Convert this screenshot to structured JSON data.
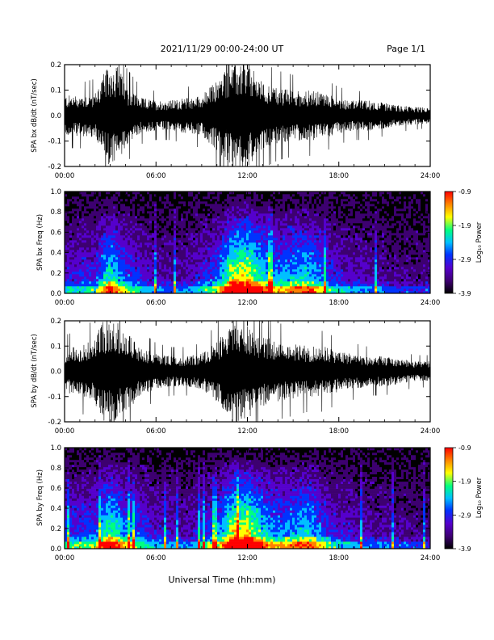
{
  "header": {
    "date_range": "2021/11/29  00:00-24:00 UT",
    "page": "Page 1/1"
  },
  "x_axis": {
    "label": "Universal Time (hh:mm)",
    "ticks": [
      "00:00",
      "06:00",
      "12:00",
      "18:00",
      "24:00"
    ]
  },
  "colors": {
    "waveform": "#000000",
    "background": "#ffffff",
    "colormap": [
      "#000000",
      "#3d0070",
      "#5500cc",
      "#0033ff",
      "#00c0ff",
      "#00ff80",
      "#ffff00",
      "#ff8000",
      "#ff0000"
    ]
  },
  "chart_data": [
    {
      "type": "line",
      "title": "",
      "xlabel": "",
      "ylabel": "SPA bx dB/dt (nT/sec)",
      "x_unit": "hours UT",
      "xlim": [
        0,
        24
      ],
      "ylim": [
        -0.2,
        0.2
      ],
      "y_ticks": [
        "-0.2",
        "-0.1",
        "0.0",
        "0.1",
        "0.2"
      ],
      "envelope": {
        "x": [
          0,
          1,
          2,
          2.5,
          3,
          3.5,
          4,
          5,
          6,
          7,
          8,
          9,
          10,
          10.5,
          11,
          11.5,
          12,
          12.5,
          13,
          14,
          15,
          16,
          17,
          18,
          19,
          20,
          21,
          22,
          23,
          24
        ],
        "amplitude": [
          0.08,
          0.08,
          0.09,
          0.16,
          0.2,
          0.2,
          0.12,
          0.07,
          0.06,
          0.06,
          0.07,
          0.08,
          0.14,
          0.18,
          0.2,
          0.2,
          0.2,
          0.17,
          0.13,
          0.11,
          0.1,
          0.1,
          0.09,
          0.07,
          0.06,
          0.06,
          0.05,
          0.04,
          0.035,
          0.03
        ]
      }
    },
    {
      "type": "heatmap",
      "title": "",
      "xlabel": "",
      "ylabel": "SPA bx Freq (Hz)",
      "colorbar_label": "Log₁₀ Power",
      "xlim": [
        0,
        24
      ],
      "ylim": [
        0,
        1.0
      ],
      "y_ticks": [
        "0.0",
        "0.2",
        "0.4",
        "0.6",
        "0.8",
        "1.0"
      ],
      "color_range": [
        -3.9,
        -0.9
      ],
      "colorbar_ticks": [
        "-0.9",
        "-1.9",
        "-2.9",
        "-3.9"
      ],
      "activity": {
        "x": [
          0,
          2,
          3,
          4,
          6,
          8,
          10,
          11,
          12,
          13,
          14,
          15,
          16,
          17,
          18,
          20,
          22,
          24
        ],
        "level": [
          0.2,
          0.25,
          0.5,
          0.3,
          0.15,
          0.15,
          0.3,
          0.6,
          0.65,
          0.45,
          0.35,
          0.4,
          0.45,
          0.3,
          0.2,
          0.15,
          0.1,
          0.1
        ]
      }
    },
    {
      "type": "line",
      "title": "",
      "xlabel": "",
      "ylabel": "SPA by dB/dt (nT/sec)",
      "x_unit": "hours UT",
      "xlim": [
        0,
        24
      ],
      "ylim": [
        -0.2,
        0.2
      ],
      "y_ticks": [
        "-0.2",
        "-0.1",
        "0.0",
        "0.1",
        "0.2"
      ],
      "envelope": {
        "x": [
          0,
          1,
          2,
          2.5,
          3,
          3.5,
          4,
          5,
          6,
          7,
          8,
          9,
          10,
          10.5,
          11,
          11.5,
          12,
          12.5,
          13,
          14,
          15,
          16,
          17,
          18,
          19,
          20,
          21,
          22,
          23,
          24
        ],
        "amplitude": [
          0.09,
          0.1,
          0.13,
          0.2,
          0.2,
          0.2,
          0.16,
          0.1,
          0.07,
          0.06,
          0.06,
          0.07,
          0.12,
          0.16,
          0.2,
          0.2,
          0.19,
          0.16,
          0.14,
          0.12,
          0.11,
          0.1,
          0.1,
          0.08,
          0.07,
          0.06,
          0.06,
          0.05,
          0.04,
          0.04
        ]
      }
    },
    {
      "type": "heatmap",
      "title": "",
      "xlabel": "",
      "ylabel": "SPA by Freq (Hz)",
      "colorbar_label": "Log₁₀ Power",
      "xlim": [
        0,
        24
      ],
      "ylim": [
        0,
        1.0
      ],
      "y_ticks": [
        "0.0",
        "0.2",
        "0.4",
        "0.6",
        "0.8",
        "1.0"
      ],
      "color_range": [
        -3.9,
        -0.9
      ],
      "colorbar_ticks": [
        "-0.9",
        "-1.9",
        "-2.9",
        "-3.9"
      ],
      "activity": {
        "x": [
          0,
          2,
          3,
          4,
          6,
          8,
          10,
          11,
          12,
          13,
          14,
          15,
          16,
          17,
          18,
          20,
          22,
          24
        ],
        "level": [
          0.25,
          0.3,
          0.55,
          0.35,
          0.2,
          0.15,
          0.3,
          0.6,
          0.65,
          0.45,
          0.35,
          0.4,
          0.45,
          0.3,
          0.2,
          0.15,
          0.12,
          0.1
        ]
      }
    }
  ]
}
